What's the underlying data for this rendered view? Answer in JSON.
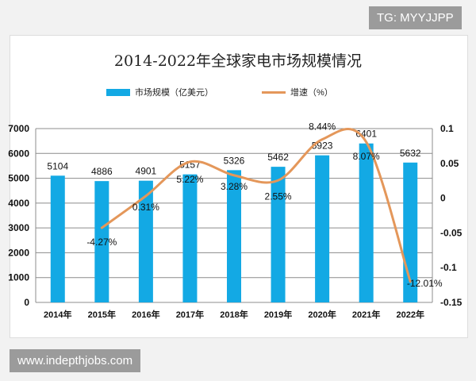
{
  "watermark_top": "TG: MYYJJPP",
  "watermark_bottom": "www.indepthjobs.com",
  "chart_data": {
    "type": "bar+line",
    "title": "2014-2022年全球家电市场规模情况",
    "categories": [
      "2014年",
      "2015年",
      "2016年",
      "2017年",
      "2018年",
      "2019年",
      "2020年",
      "2021年",
      "2022年"
    ],
    "series": [
      {
        "name": "市场规模（亿美元）",
        "type": "bar",
        "axis": "left",
        "color": "#13a9e4",
        "values": [
          5104,
          4886,
          4901,
          5157,
          5326,
          5462,
          5923,
          6401,
          5632
        ],
        "labels": [
          "5104",
          "4886",
          "4901",
          "5157",
          "5326",
          "5462",
          "5923",
          "6401",
          "5632"
        ]
      },
      {
        "name": "增速（%）",
        "type": "line",
        "axis": "right",
        "color": "#e4975a",
        "smooth": true,
        "values": [
          null,
          -0.0427,
          0.0031,
          0.0522,
          0.0328,
          0.0255,
          0.0844,
          0.0807,
          -0.1201
        ],
        "labels": [
          "",
          "-4.27%",
          "0.31%",
          "5.22%",
          "3.28%",
          "2.55%",
          "8.44%",
          "8.07%",
          "-12.01%"
        ]
      }
    ],
    "y_left": {
      "ylim": [
        0,
        7000
      ],
      "ticks": [
        "0",
        "1000",
        "2000",
        "3000",
        "4000",
        "5000",
        "6000",
        "7000"
      ]
    },
    "y_right": {
      "ylim": [
        -0.15,
        0.1
      ],
      "ticks": [
        "-0.15",
        "-0.1",
        "-0.05",
        "0",
        "0.05",
        "0.1"
      ]
    },
    "grid": true,
    "legend": "top"
  }
}
